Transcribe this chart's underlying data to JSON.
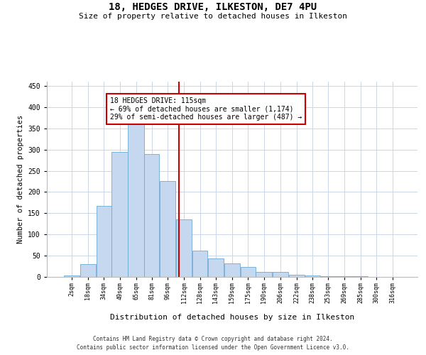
{
  "title": "18, HEDGES DRIVE, ILKESTON, DE7 4PU",
  "subtitle": "Size of property relative to detached houses in Ilkeston",
  "xlabel": "Distribution of detached houses by size in Ilkeston",
  "ylabel": "Number of detached properties",
  "footer_line1": "Contains HM Land Registry data © Crown copyright and database right 2024.",
  "footer_line2": "Contains public sector information licensed under the Open Government Licence v3.0.",
  "bar_labels": [
    "2sqm",
    "18sqm",
    "34sqm",
    "49sqm",
    "65sqm",
    "81sqm",
    "96sqm",
    "112sqm",
    "128sqm",
    "143sqm",
    "159sqm",
    "175sqm",
    "190sqm",
    "206sqm",
    "222sqm",
    "238sqm",
    "253sqm",
    "269sqm",
    "285sqm",
    "300sqm",
    "316sqm"
  ],
  "bar_heights": [
    3,
    30,
    168,
    295,
    370,
    290,
    226,
    136,
    62,
    44,
    31,
    23,
    11,
    12,
    5,
    4,
    1,
    2,
    1,
    0,
    0
  ],
  "property_line_x": 115,
  "annotation_line1": "18 HEDGES DRIVE: 115sqm",
  "annotation_line2": "← 69% of detached houses are smaller (1,174)",
  "annotation_line3": "29% of semi-detached houses are larger (487) →",
  "bar_color": "#c5d8f0",
  "bar_edge_color": "#6aaad4",
  "line_color": "#cc0000",
  "annotation_box_edge_color": "#cc0000",
  "bg_color": "#ffffff",
  "grid_color": "#ccd6e8",
  "ylim": [
    0,
    460
  ],
  "bin_edges": [
    2,
    18,
    34,
    49,
    65,
    81,
    96,
    112,
    128,
    143,
    159,
    175,
    190,
    206,
    222,
    238,
    253,
    269,
    285,
    300,
    316,
    332
  ]
}
